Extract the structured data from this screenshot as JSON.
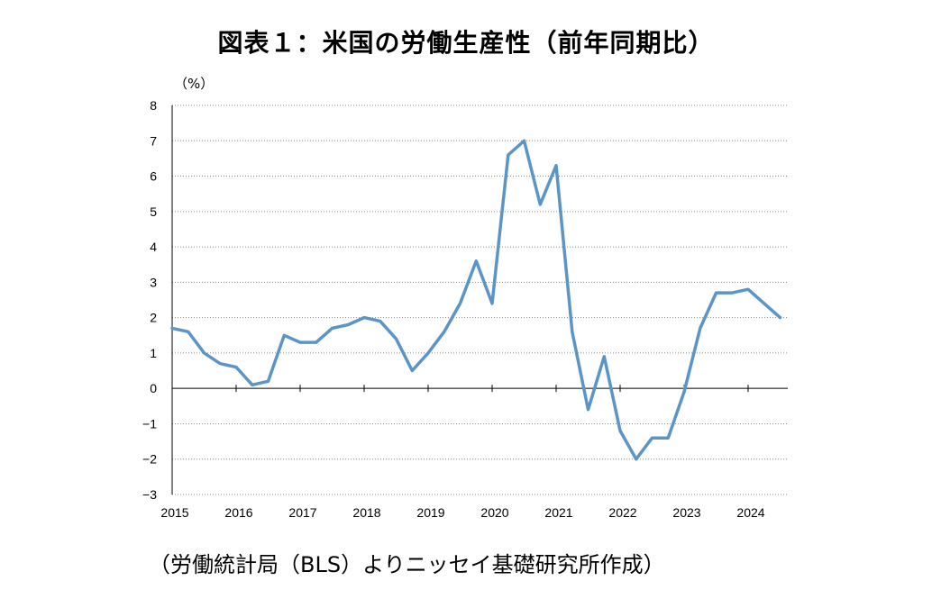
{
  "chart_data": {
    "type": "line",
    "title": "図表１：米国の労働生産性（前年同期比）",
    "y_unit": "（%）",
    "source_note": "（労働統計局（BLS）よりニッセイ基礎研究所作成）",
    "ylim": [
      -3,
      8
    ],
    "y_ticks": [
      "8",
      "7",
      "6",
      "5",
      "4",
      "3",
      "2",
      "1",
      "0",
      "−1",
      "−2",
      "−3"
    ],
    "x_ticks": [
      "2015",
      "2016",
      "2017",
      "2018",
      "2019",
      "2020",
      "2021",
      "2022",
      "2023",
      "2024"
    ],
    "grid": true,
    "line_color": "#5b95c8",
    "series": [
      {
        "x": [
          "2015 Q1",
          "2015 Q2",
          "2015 Q3",
          "2015 Q4",
          "2016 Q1",
          "2016 Q2",
          "2016 Q3",
          "2016 Q4",
          "2017 Q1",
          "2017 Q2",
          "2017 Q3",
          "2017 Q4",
          "2018 Q1",
          "2018 Q2",
          "2018 Q3",
          "2018 Q4",
          "2019 Q1",
          "2019 Q2",
          "2019 Q3",
          "2019 Q4",
          "2020 Q1",
          "2020 Q2",
          "2020 Q3",
          "2020 Q4",
          "2021 Q1",
          "2021 Q2",
          "2021 Q3",
          "2021 Q4",
          "2022 Q1",
          "2022 Q2",
          "2022 Q3",
          "2022 Q4",
          "2023 Q1",
          "2023 Q2",
          "2023 Q3",
          "2023 Q4",
          "2024 Q1",
          "2024 Q2",
          "2024 Q3"
        ],
        "values": [
          1.7,
          1.6,
          1.0,
          0.7,
          0.6,
          0.1,
          0.2,
          1.5,
          1.3,
          1.3,
          1.7,
          1.8,
          2.0,
          1.9,
          1.4,
          0.5,
          1.0,
          1.6,
          2.4,
          3.6,
          2.4,
          6.6,
          7.0,
          5.2,
          6.3,
          1.6,
          -0.6,
          0.9,
          -1.2,
          -2.0,
          -1.4,
          -1.4,
          -0.1,
          1.7,
          2.7,
          2.7,
          2.8,
          2.4,
          2.0
        ]
      }
    ]
  }
}
